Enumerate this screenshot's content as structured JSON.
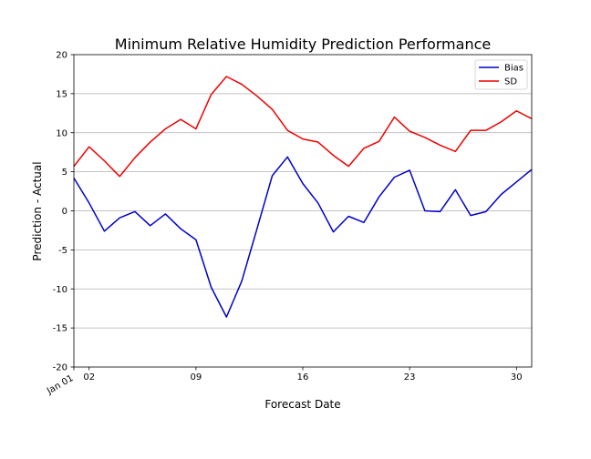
{
  "chart_data": {
    "type": "line",
    "title": "Minimum Relative Humidity Prediction Performance",
    "xlabel": "Forecast Date",
    "ylabel": "Prediction - Actual",
    "ylim": [
      -20,
      20
    ],
    "yticks": [
      -20,
      -15,
      -10,
      -5,
      0,
      5,
      10,
      15,
      20
    ],
    "xlim": [
      "Jan 01",
      "Jan 31"
    ],
    "xticks": [
      {
        "day": 1,
        "label": "Jan 01"
      },
      {
        "day": 2,
        "label": "02"
      },
      {
        "day": 9,
        "label": "09"
      },
      {
        "day": 16,
        "label": "16"
      },
      {
        "day": 23,
        "label": "23"
      },
      {
        "day": 30,
        "label": "30"
      }
    ],
    "grid": "horizontal",
    "legend_position": "top-right",
    "x": [
      1,
      2,
      3,
      4,
      5,
      6,
      7,
      8,
      9,
      10,
      11,
      12,
      13,
      14,
      15,
      16,
      17,
      18,
      19,
      20,
      21,
      22,
      23,
      24,
      25,
      26,
      27,
      28,
      29,
      30,
      31
    ],
    "series": [
      {
        "name": "Bias",
        "color": "#0000cc",
        "values": [
          4.2,
          1.0,
          -2.6,
          -0.9,
          -0.1,
          -1.9,
          -0.4,
          -2.3,
          -3.7,
          -9.8,
          -13.6,
          -9.0,
          -2.3,
          4.5,
          6.9,
          3.5,
          1.0,
          -2.7,
          -0.7,
          -1.5,
          1.8,
          4.3,
          5.2,
          0.0,
          -0.1,
          2.7,
          -0.6,
          -0.1,
          2.1,
          3.7,
          5.3
        ]
      },
      {
        "name": "SD",
        "color": "#ee0000",
        "values": [
          5.7,
          8.2,
          6.4,
          4.4,
          6.8,
          8.8,
          10.5,
          11.7,
          10.5,
          14.9,
          17.2,
          16.2,
          14.7,
          13.0,
          10.3,
          9.2,
          8.8,
          7.1,
          5.7,
          8.0,
          8.9,
          12.0,
          10.2,
          9.4,
          8.4,
          7.6,
          10.3,
          10.3,
          11.4,
          12.8,
          11.8
        ]
      }
    ]
  }
}
